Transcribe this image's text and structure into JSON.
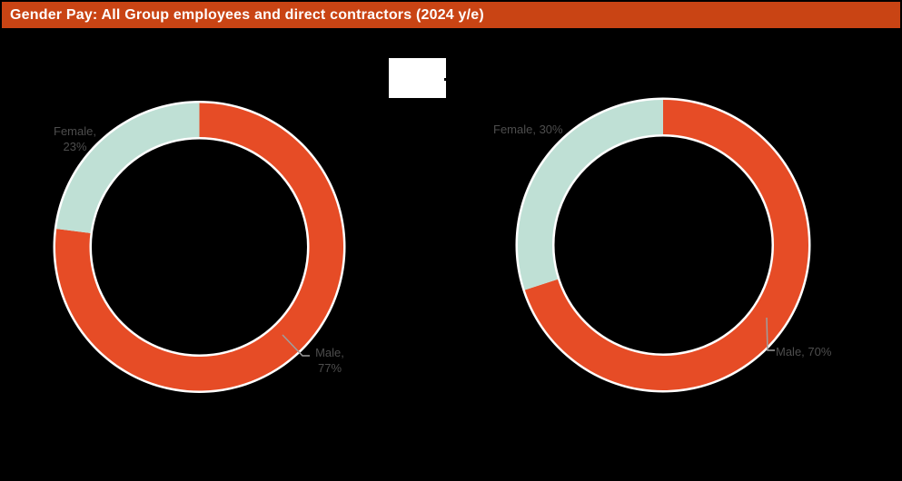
{
  "header": {
    "title": "Gender Pay: All Group employees and direct contractors (2024 y/e)",
    "bg_color": "#C94414",
    "text_color": "#FFFFFF"
  },
  "canvas": {
    "bg_color": "#000000"
  },
  "colors": {
    "male": "#E64C26",
    "female": "#BFE0D5",
    "ring_border": "#FFFFFF",
    "label_text": "#4D4D4D",
    "leader_line": "#9E9E9E",
    "overlay_box_fill": "#FFFFFF"
  },
  "chart_data": [
    {
      "type": "pie",
      "subtype": "donut",
      "categories": [
        "Male",
        "Female"
      ],
      "values": [
        77,
        23
      ],
      "unit": "%",
      "start_angle_deg": 0,
      "direction": "clockwise",
      "legend": "none",
      "data_labels": {
        "female_line1": "Female,",
        "female_line2": "23%",
        "male_line1": "Male,",
        "male_line2": "77%"
      }
    },
    {
      "type": "pie",
      "subtype": "donut",
      "categories": [
        "Male",
        "Female"
      ],
      "values": [
        70,
        30
      ],
      "unit": "%",
      "start_angle_deg": 0,
      "direction": "clockwise",
      "legend": "none",
      "data_labels": {
        "female": "Female, 30%",
        "male": "Male, 70%"
      }
    }
  ]
}
